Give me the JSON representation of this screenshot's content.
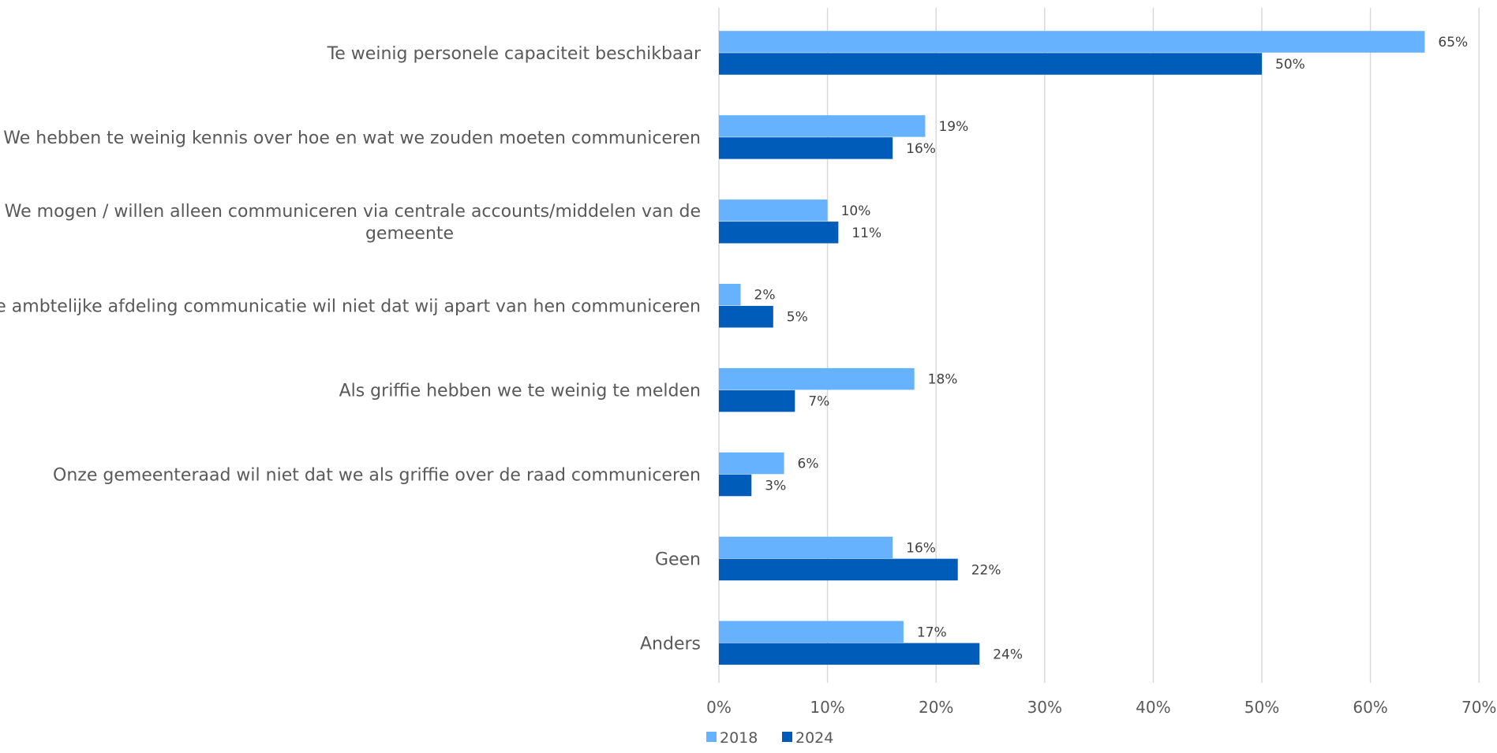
{
  "chart_data": {
    "type": "bar",
    "orientation": "horizontal",
    "categories": [
      [
        "Te weinig personele capaciteit beschikbaar"
      ],
      [
        "We hebben te weinig kennis over hoe en wat we zouden moeten communiceren"
      ],
      [
        "We mogen / willen alleen communiceren via centrale accounts/middelen van de",
        "gemeente"
      ],
      [
        "De ambtelijke afdeling communicatie wil niet dat wij apart van hen communiceren"
      ],
      [
        "Als griffie hebben we te weinig te melden"
      ],
      [
        "Onze gemeenteraad wil niet dat we als griffie over de raad communiceren"
      ],
      [
        "Geen"
      ],
      [
        "Anders"
      ]
    ],
    "series": [
      {
        "name": "2018",
        "color": "#66B2FF",
        "values": [
          65,
          19,
          10,
          2,
          18,
          6,
          16,
          17
        ],
        "labels": [
          "65%",
          "19%",
          "10%",
          "2%",
          "18%",
          "6%",
          "16%",
          "17%"
        ]
      },
      {
        "name": "2024",
        "color": "#005CB9",
        "values": [
          50,
          16,
          11,
          5,
          7,
          3,
          22,
          24
        ],
        "labels": [
          "50%",
          "16%",
          "11%",
          "5%",
          "7%",
          "3%",
          "22%",
          "24%"
        ]
      }
    ],
    "xlim": [
      0,
      70
    ],
    "xticks": [
      0,
      10,
      20,
      30,
      40,
      50,
      60,
      70
    ],
    "xtick_labels": [
      "0%",
      "10%",
      "20%",
      "30%",
      "40%",
      "50%",
      "60%",
      "70%"
    ],
    "grid": true,
    "gridline_color": "#D9D9D9",
    "legend": "bottom",
    "title": "",
    "xlabel": "",
    "ylabel": ""
  }
}
